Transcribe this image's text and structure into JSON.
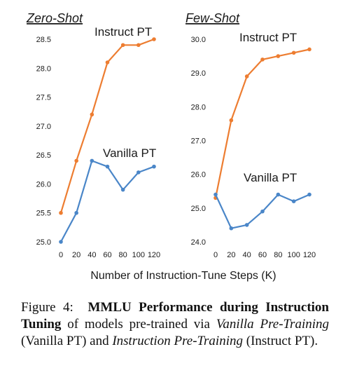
{
  "chart_data": [
    {
      "type": "line",
      "title": "Zero-Shot",
      "x": [
        0,
        20,
        40,
        60,
        80,
        100,
        120
      ],
      "xticks": [
        "0",
        "20",
        "40",
        "60",
        "80",
        "100",
        "120"
      ],
      "ylim": [
        25.0,
        28.5
      ],
      "yticks": [
        "25.0",
        "25.5",
        "26.0",
        "26.5",
        "27.0",
        "27.5",
        "28.0",
        "28.5"
      ],
      "series": [
        {
          "name": "Instruct PT",
          "color": "#ed7d31",
          "values": [
            25.5,
            26.4,
            27.2,
            28.1,
            28.4,
            28.4,
            28.5
          ]
        },
        {
          "name": "Vanilla PT",
          "color": "#4a86c8",
          "values": [
            25.0,
            25.5,
            26.4,
            26.3,
            25.9,
            26.2,
            26.3
          ]
        }
      ]
    },
    {
      "type": "line",
      "title": "Few-Shot",
      "x": [
        0,
        20,
        40,
        60,
        80,
        100,
        120
      ],
      "xticks": [
        "0",
        "20",
        "40",
        "60",
        "80",
        "100",
        "120"
      ],
      "ylim": [
        24.0,
        30.0
      ],
      "yticks": [
        "24.0",
        "25.0",
        "26.0",
        "27.0",
        "28.0",
        "29.0",
        "30.0"
      ],
      "series": [
        {
          "name": "Instruct PT",
          "color": "#ed7d31",
          "values": [
            25.3,
            27.6,
            28.9,
            29.4,
            29.5,
            29.6,
            29.7
          ]
        },
        {
          "name": "Vanilla PT",
          "color": "#4a86c8",
          "values": [
            25.4,
            24.4,
            24.5,
            24.9,
            25.4,
            25.2,
            25.4
          ]
        }
      ]
    }
  ],
  "xlabel": "Number of Instruction-Tune Steps (K)",
  "caption": {
    "figure_label": "Figure 4:",
    "title_bold_1": "MMLU",
    "title_bold_2": "Performance during Instruction Tuning",
    "text_1": "of models pre-trained via",
    "vanilla_italic": "Vanilla Pre-Training",
    "vanilla_abbr": "(Vanilla PT) and",
    "instruct_italic": "Instruction Pre-Training",
    "instruct_abbr": "(Instruct PT)."
  }
}
